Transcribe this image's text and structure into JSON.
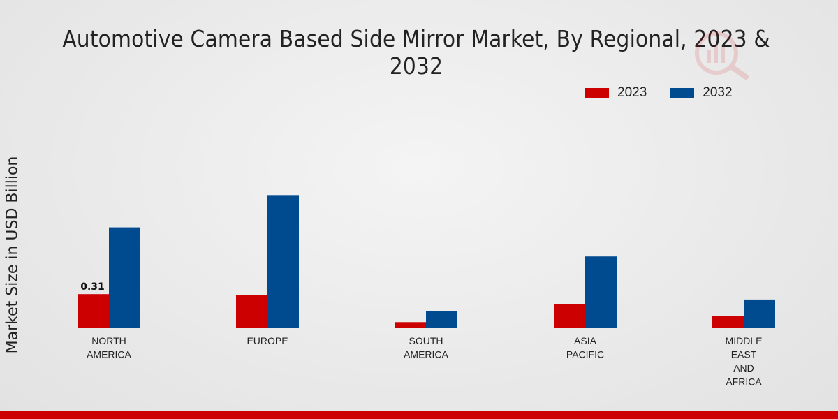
{
  "chart_data": {
    "type": "bar",
    "title": "Automotive Camera Based Side Mirror Market, By Regional, 2023 & 2032",
    "ylabel": "Market Size in USD Billion",
    "xlabel": "",
    "categories": [
      [
        "NORTH",
        "AMERICA"
      ],
      [
        "EUROPE"
      ],
      [
        "SOUTH",
        "AMERICA"
      ],
      [
        "ASIA",
        "PACIFIC"
      ],
      [
        "MIDDLE",
        "EAST",
        "AND",
        "AFRICA"
      ]
    ],
    "series": [
      {
        "name": "2023",
        "color": "#cc0000",
        "values": [
          0.31,
          0.3,
          0.05,
          0.22,
          0.11
        ]
      },
      {
        "name": "2032",
        "color": "#004a8f",
        "values": [
          0.93,
          1.23,
          0.15,
          0.66,
          0.26
        ]
      }
    ],
    "data_labels": [
      {
        "series": 0,
        "index": 0,
        "text": "0.31"
      }
    ],
    "ylim": [
      0,
      1.55
    ],
    "grid": false,
    "legend_position": "top-right"
  }
}
